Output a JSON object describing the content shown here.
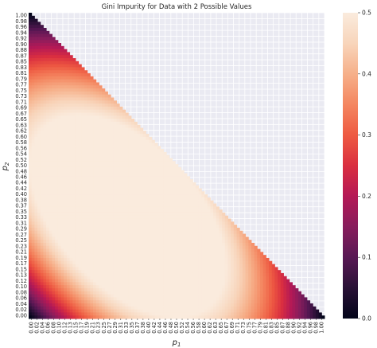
{
  "chart_data": {
    "type": "heatmap",
    "title": "Gini Impurity for Data with 2 Possible Values",
    "xlabel": "p1",
    "ylabel": "p2",
    "value_formula": "1 - p1^2 - p2^2 - (1 - p1 - p2)^2 where p1 + p2 <= 1, otherwise empty",
    "value_range": [
      0.0,
      0.5
    ],
    "empty_region": "upper-right triangle where p1 + p2 > 1",
    "colormap": "rocket",
    "background_color": "#eaeaf2",
    "grid_color": "#ffffff",
    "x_tick_labels": [
      "0.00",
      "0.02",
      "0.04",
      "0.06",
      "0.08",
      "0.10",
      "0.12",
      "0.13",
      "0.15",
      "0.17",
      "0.19",
      "0.21",
      "0.23",
      "0.25",
      "0.27",
      "0.29",
      "0.31",
      "0.33",
      "0.35",
      "0.37",
      "0.38",
      "0.40",
      "0.42",
      "0.44",
      "0.46",
      "0.48",
      "0.50",
      "0.52",
      "0.54",
      "0.56",
      "0.58",
      "0.60",
      "0.62",
      "0.63",
      "0.65",
      "0.67",
      "0.69",
      "0.71",
      "0.73",
      "0.75",
      "0.77",
      "0.79",
      "0.81",
      "0.83",
      "0.85",
      "0.87",
      "0.88",
      "0.90",
      "0.92",
      "0.94",
      "0.96",
      "0.98",
      "1.00"
    ],
    "y_tick_labels": [
      "1.00",
      "0.98",
      "0.96",
      "0.94",
      "0.92",
      "0.90",
      "0.88",
      "0.87",
      "0.85",
      "0.83",
      "0.81",
      "0.79",
      "0.77",
      "0.75",
      "0.73",
      "0.71",
      "0.69",
      "0.67",
      "0.65",
      "0.63",
      "0.62",
      "0.60",
      "0.58",
      "0.56",
      "0.54",
      "0.52",
      "0.50",
      "0.48",
      "0.46",
      "0.44",
      "0.42",
      "0.40",
      "0.38",
      "0.37",
      "0.35",
      "0.33",
      "0.31",
      "0.29",
      "0.27",
      "0.25",
      "0.23",
      "0.21",
      "0.19",
      "0.17",
      "0.15",
      "0.13",
      "0.12",
      "0.10",
      "0.08",
      "0.06",
      "0.04",
      "0.02",
      "0.00"
    ],
    "colorbar": {
      "ticks": [
        "0.0",
        "0.1",
        "0.2",
        "0.3",
        "0.4",
        "0.5"
      ],
      "range": [
        0.0,
        0.5
      ]
    }
  }
}
